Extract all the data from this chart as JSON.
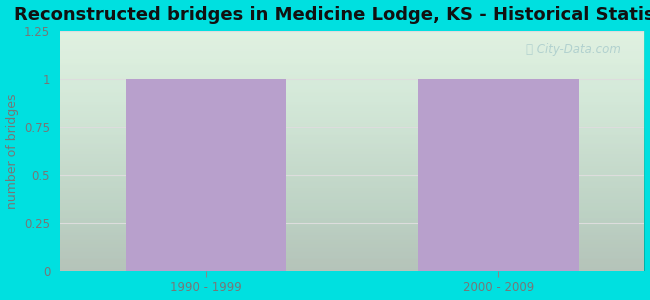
{
  "title": "Reconstructed bridges in Medicine Lodge, KS - Historical Statistics",
  "categories": [
    "1990 - 1999",
    "2000 - 2009"
  ],
  "values": [
    1,
    1
  ],
  "bar_color": "#b8a0cc",
  "ylabel": "number of bridges",
  "ylim": [
    0,
    1.25
  ],
  "yticks": [
    0,
    0.25,
    0.5,
    0.75,
    1,
    1.25
  ],
  "background_outer": "#00e0e0",
  "title_fontsize": 13,
  "ylabel_fontsize": 9,
  "tick_fontsize": 8.5,
  "bar_width": 0.55,
  "grid_color": "#dddddd",
  "tick_color": "#888888",
  "label_color": "#777777",
  "watermark": "City-Data.com",
  "watermark_color": "#aacccc"
}
